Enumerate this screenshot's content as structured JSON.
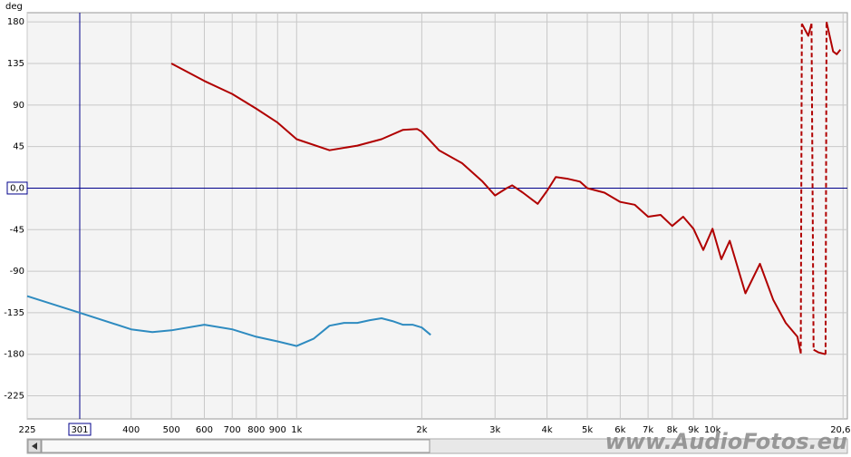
{
  "chart_data": {
    "type": "line",
    "y_label": "deg",
    "log_x": true,
    "grid": true,
    "xlim": [
      225,
      21100
    ],
    "ylim": [
      -250,
      190
    ],
    "xticks": [
      225,
      400,
      500,
      600,
      700,
      800,
      900,
      {
        "value": 1000,
        "label": "1k"
      },
      {
        "value": 2000,
        "label": "2k"
      },
      {
        "value": 3000,
        "label": "3k"
      },
      {
        "value": 4000,
        "label": "4k"
      },
      {
        "value": 5000,
        "label": "5k"
      },
      {
        "value": 6000,
        "label": "6k"
      },
      {
        "value": 7000,
        "label": "7k"
      },
      {
        "value": 8000,
        "label": "8k"
      },
      {
        "value": 9000,
        "label": "9k"
      },
      {
        "value": 10000,
        "label": "10k"
      },
      {
        "value": 20600,
        "label": "20,6k"
      }
    ],
    "yticks": [
      180,
      135,
      90,
      45,
      -45,
      -90,
      -135,
      -180,
      -225
    ],
    "cursor": {
      "x": 301,
      "y": {
        "value": 0,
        "label": "0,0"
      },
      "color": "#00008b"
    },
    "series": [
      {
        "color": "#b00000",
        "x": [
          500,
          600,
          700,
          800,
          900,
          1000,
          1200,
          1400,
          1600,
          1800,
          1950,
          2000,
          2200,
          2500,
          2800,
          3000,
          3200,
          3300,
          3500,
          3800,
          4000,
          4200,
          4500,
          4800,
          5000,
          5500,
          6000,
          6500,
          7000,
          7500,
          8000,
          8500,
          9000,
          9500,
          10000,
          10500,
          11000,
          12000,
          13000,
          14000,
          15000,
          16000,
          16300,
          16350,
          16400,
          17000,
          17300,
          17400,
          17500,
          18000,
          18700,
          18750,
          18800,
          19500,
          19900,
          20300
        ],
        "values": [
          135,
          116,
          102,
          86,
          71,
          53,
          41,
          46,
          53,
          63,
          64,
          61,
          41,
          27,
          7,
          -8,
          0,
          3,
          -5,
          -17,
          -3,
          12,
          10,
          7,
          0,
          -5,
          -15,
          -18,
          -31,
          -29,
          -41,
          -31,
          -44,
          -67,
          -44,
          -77,
          -57,
          -114,
          -82,
          -121,
          -146,
          -161,
          -179,
          null,
          178,
          165,
          178,
          null,
          -175,
          -178,
          -180,
          null,
          180,
          148,
          145,
          150
        ]
      },
      {
        "color": "#2e8bc0",
        "x": [
          225,
          301,
          400,
          450,
          500,
          600,
          700,
          800,
          900,
          1000,
          1100,
          1200,
          1300,
          1400,
          1500,
          1600,
          1700,
          1800,
          1900,
          2000,
          2100
        ],
        "values": [
          -117,
          -135,
          -153,
          -156,
          -154,
          -148,
          -153,
          -161,
          -166,
          -171,
          -163,
          -149,
          -146,
          -146,
          -143,
          -141,
          -144,
          -148,
          -148,
          -151,
          -159
        ]
      }
    ],
    "watermark": "www.AudioFotos.eu"
  }
}
